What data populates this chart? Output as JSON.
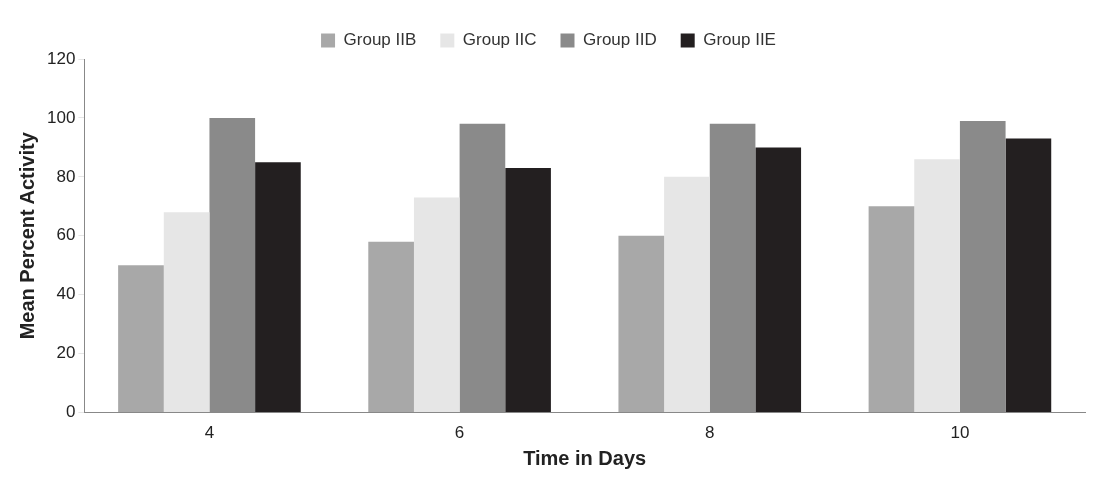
{
  "chart_data": {
    "type": "bar",
    "xlabel": "Time in Days",
    "ylabel": "Mean Percent Activity",
    "categories": [
      "4",
      "6",
      "8",
      "10"
    ],
    "series": [
      {
        "name": "Group IIB",
        "color": "#a8a8a8",
        "values": [
          50,
          58,
          60,
          70
        ]
      },
      {
        "name": "Group IIC",
        "color": "#e6e6e6",
        "values": [
          68,
          73,
          80,
          86
        ]
      },
      {
        "name": "Group IID",
        "color": "#8a8a8a",
        "values": [
          100,
          98,
          98,
          99
        ]
      },
      {
        "name": "Group IIE",
        "color": "#231f20",
        "values": [
          85,
          83,
          90,
          93
        ]
      }
    ],
    "ylim": [
      0,
      120
    ],
    "yticks": [
      0,
      20,
      40,
      60,
      80,
      100,
      120
    ],
    "grid": false,
    "legend": "top"
  }
}
